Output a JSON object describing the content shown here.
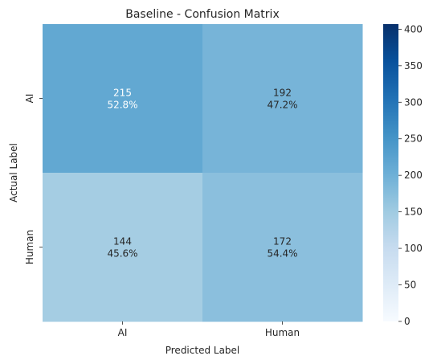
{
  "chart_data": {
    "type": "heatmap",
    "title": "Baseline - Confusion Matrix",
    "xlabel": "Predicted Label",
    "ylabel": "Actual Label",
    "x_categories": [
      "AI",
      "Human"
    ],
    "y_categories": [
      "AI",
      "Human"
    ],
    "values": [
      [
        215,
        192
      ],
      [
        144,
        172
      ]
    ],
    "percent_labels": [
      [
        "52.8%",
        "47.2%"
      ],
      [
        "45.6%",
        "54.4%"
      ]
    ],
    "colorbar": {
      "min": 0,
      "max": 407,
      "ticks": [
        0,
        50,
        100,
        150,
        200,
        250,
        300,
        350,
        400
      ],
      "colormap": "Blues"
    },
    "cell_text_colors": [
      [
        "#ffffff",
        "#262626"
      ],
      [
        "#262626",
        "#262626"
      ]
    ],
    "grid": false
  }
}
